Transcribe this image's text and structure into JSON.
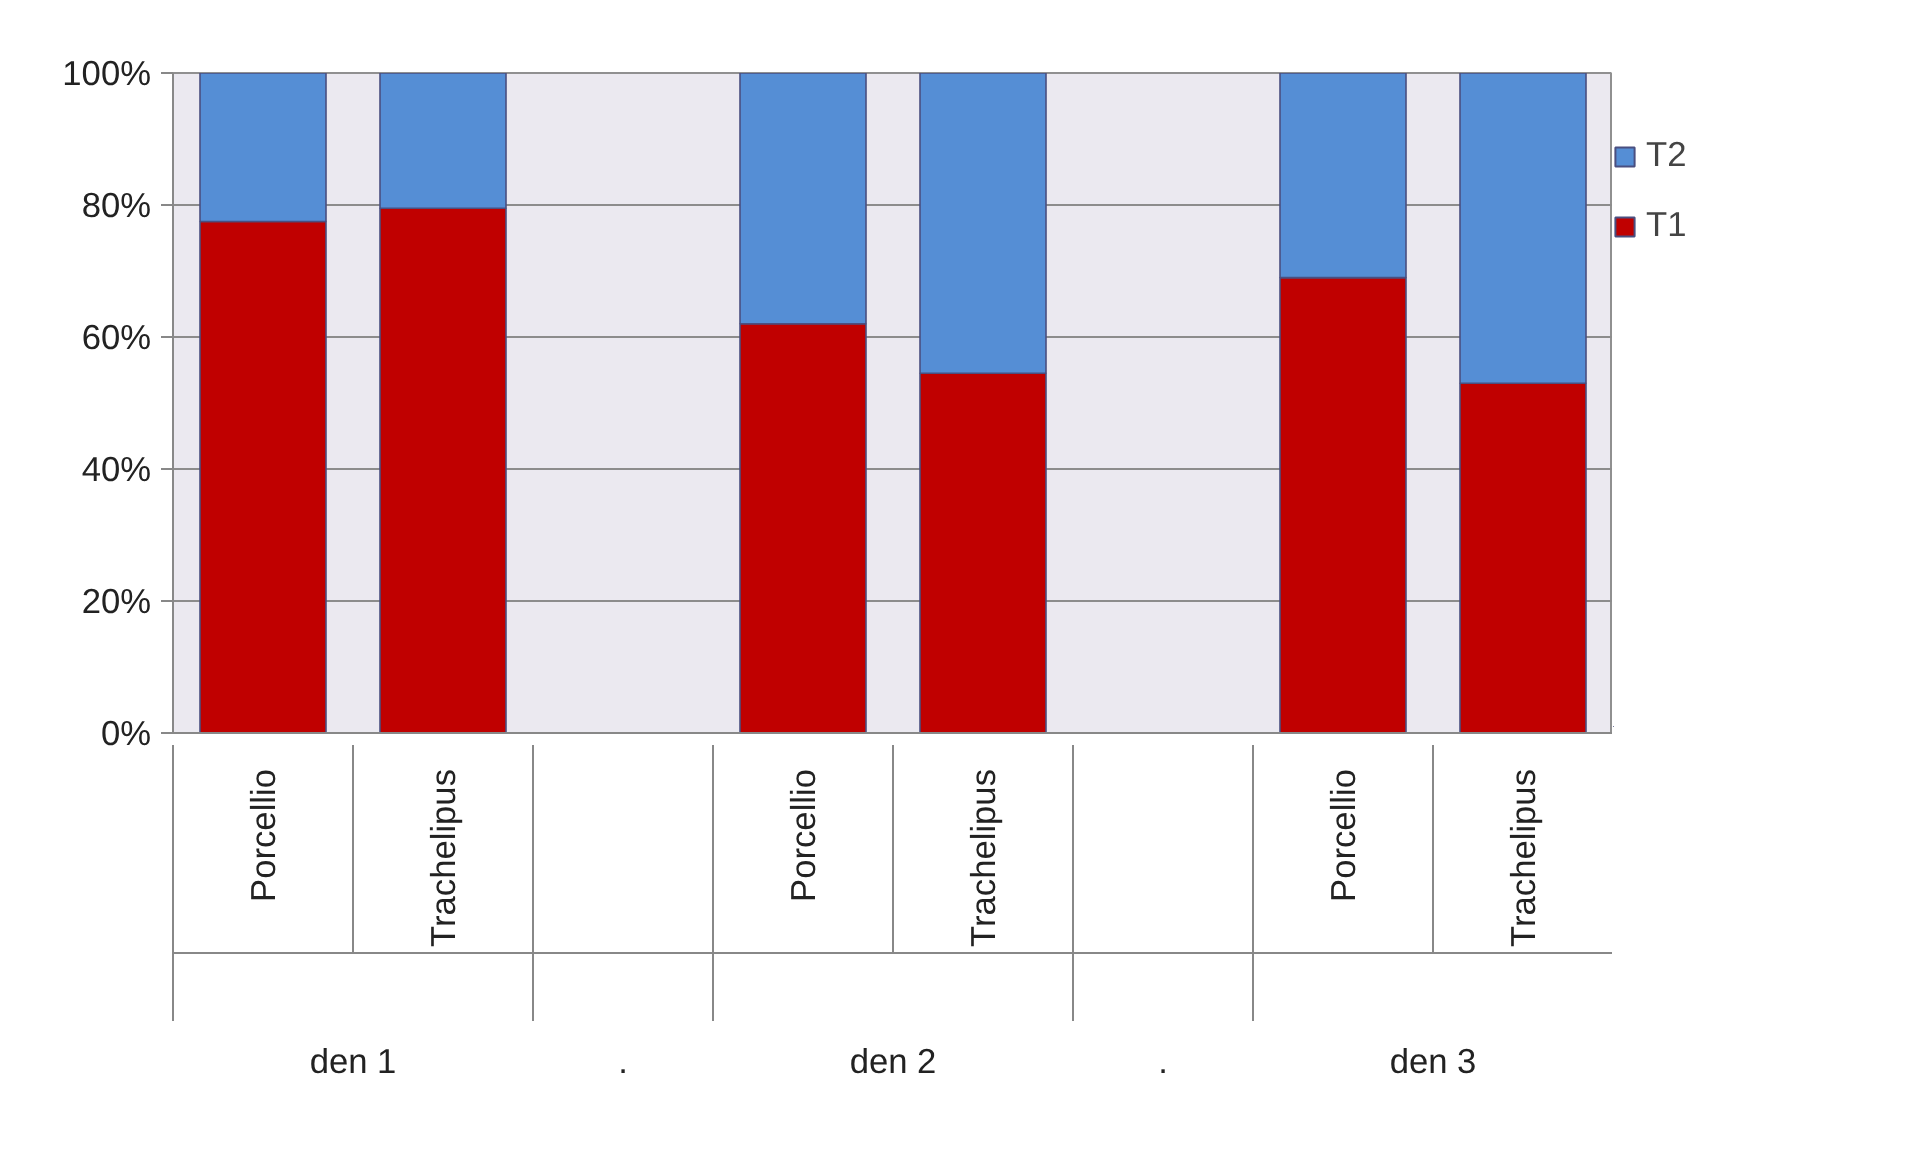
{
  "chart_data": {
    "type": "bar",
    "stacked": true,
    "categories": [
      "Porcellio",
      "Trachelipus",
      null,
      "Porcellio",
      "Trachelipus",
      null,
      "Porcellio",
      "Trachelipus"
    ],
    "series": [
      {
        "name": "T1",
        "color": "#c00000",
        "values": [
          77.5,
          79.5,
          null,
          62,
          54.5,
          null,
          69,
          53
        ]
      },
      {
        "name": "T2",
        "color": "#558ed5",
        "values": [
          22.5,
          20.5,
          null,
          38,
          45.5,
          null,
          31,
          47
        ]
      }
    ],
    "ylim": [
      0,
      100
    ],
    "yticks": [
      {
        "value": 0,
        "label": "0%"
      },
      {
        "value": 20,
        "label": "20%"
      },
      {
        "value": 40,
        "label": "40%"
      },
      {
        "value": 60,
        "label": "60%"
      },
      {
        "value": 80,
        "label": "80%"
      },
      {
        "value": 100,
        "label": "100%"
      }
    ],
    "grid": "y",
    "legend": "right",
    "annotations": [
      "den 1",
      ".",
      "den 2",
      ".",
      "den 3"
    ]
  }
}
